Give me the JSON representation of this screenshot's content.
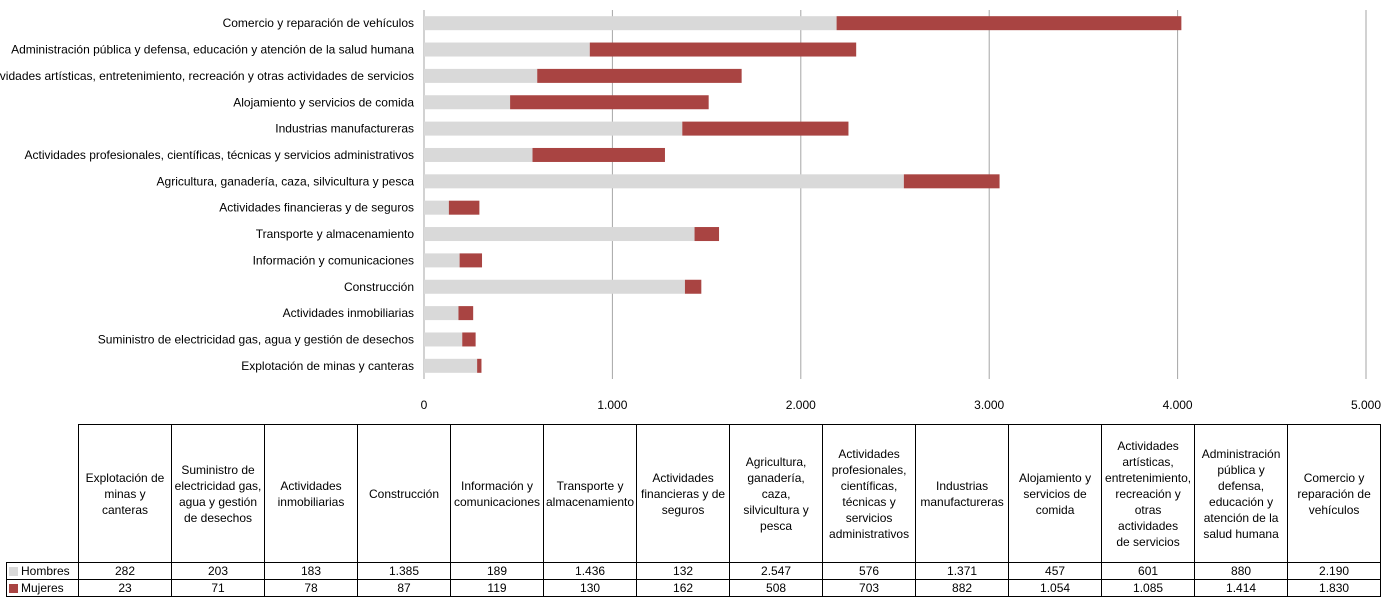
{
  "chart_data": {
    "type": "bar",
    "orientation": "horizontal",
    "stacked": true,
    "categories": [
      "Explotación de minas y canteras",
      "Suministro de electricidad gas, agua y gestión de desechos",
      "Actividades inmobiliarias",
      "Construcción",
      "Información y comunicaciones",
      "Transporte y almacenamiento",
      "Actividades financieras y de seguros",
      "Agricultura, ganadería, caza, silvicultura y pesca",
      "Actividades profesionales, científicas, técnicas y servicios administrativos",
      "Industrias manufactureras",
      "Alojamiento y servicios de comida",
      "Actividades artísticas, entretenimiento, recreación y otras actividades de servicios",
      "Administración pública y defensa, educación y atención de la salud humana",
      "Comercio y reparación de vehículos"
    ],
    "series": [
      {
        "name": "Hombres",
        "color": "#d9d9d9",
        "values": [
          282,
          203,
          183,
          1385,
          189,
          1436,
          132,
          2547,
          576,
          1371,
          457,
          601,
          880,
          2190
        ],
        "labels": [
          "282",
          "203",
          "183",
          "1.385",
          "189",
          "1.436",
          "132",
          "2.547",
          "576",
          "1.371",
          "457",
          "601",
          "880",
          "2.190"
        ]
      },
      {
        "name": "Mujeres",
        "color": "#a94442",
        "values": [
          23,
          71,
          78,
          87,
          119,
          130,
          162,
          508,
          703,
          882,
          1054,
          1085,
          1414,
          1830
        ],
        "labels": [
          "23",
          "71",
          "78",
          "87",
          "119",
          "130",
          "162",
          "508",
          "703",
          "882",
          "1.054",
          "1.085",
          "1.414",
          "1.830"
        ]
      }
    ],
    "xlim": [
      0,
      5000
    ],
    "xticks": [
      0,
      1000,
      2000,
      3000,
      4000,
      5000
    ],
    "xtick_labels": [
      "0",
      "1.000",
      "2.000",
      "3.000",
      "4.000",
      "5.000"
    ],
    "grid": true,
    "title": "",
    "xlabel": "",
    "ylabel": ""
  },
  "table": {
    "headers": [
      [
        "Explotación de",
        "minas y canteras"
      ],
      [
        "Suministro de",
        "electricidad gas,",
        "agua y gestión",
        "de desechos"
      ],
      [
        "Actividades",
        "inmobiliarias"
      ],
      [
        "Construcción"
      ],
      [
        "Información y",
        "comunicaciones"
      ],
      [
        "Transporte y",
        "almacenamiento"
      ],
      [
        "Actividades",
        "financieras y de",
        "seguros"
      ],
      [
        "Agricultura,",
        "ganadería, caza,",
        "silvicultura y",
        "pesca"
      ],
      [
        "Actividades",
        "profesionales,",
        "científicas,",
        "técnicas y",
        "servicios",
        "administrativos"
      ],
      [
        "Industrias",
        "manufactureras"
      ],
      [
        "Alojamiento y",
        "servicios de",
        "comida"
      ],
      [
        "Actividades",
        "artísticas,",
        "entretenimiento,",
        "recreación y",
        "otras actividades",
        "de servicios"
      ],
      [
        "Administración",
        "pública y",
        "defensa,",
        "educación y",
        "atención de la",
        "salud humana"
      ],
      [
        "Comercio y",
        "reparación de",
        "vehículos"
      ]
    ]
  }
}
